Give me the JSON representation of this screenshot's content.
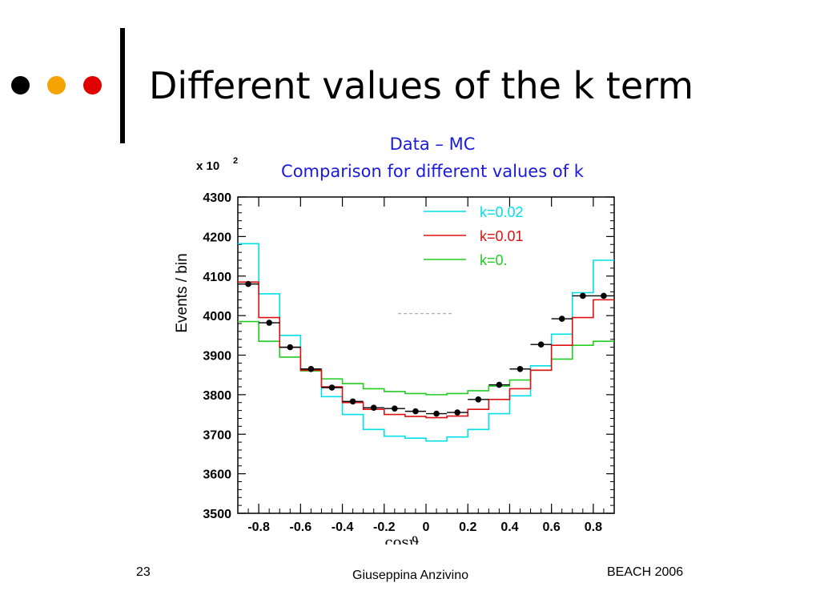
{
  "slide": {
    "title": "Different values of the k term",
    "subtitle_line1": "Data – MC",
    "subtitle_line2": "Comparison for different values of k",
    "bullet_colors": [
      "#000000",
      "#f5a300",
      "#e00000"
    ],
    "footer": {
      "page_number": "23",
      "author": "Giuseppina Anzivino",
      "event": "BEACH 2006"
    }
  },
  "chart_data": {
    "type": "line",
    "xlabel": "cosϑ",
    "ylabel": "Events / bin",
    "y_multiplier_label": "x 10",
    "y_multiplier_exp": "2",
    "xlim": [
      -0.9,
      0.9
    ],
    "ylim": [
      3500,
      4300
    ],
    "x_ticks": [
      -0.8,
      -0.6,
      -0.4,
      -0.2,
      0,
      0.2,
      0.4,
      0.6,
      0.8
    ],
    "x_tick_labels": [
      "-0.8",
      "-0.6",
      "-0.4",
      "-0.2",
      "0",
      "0.2",
      "0.4",
      "0.6",
      "0.8"
    ],
    "y_ticks": [
      3500,
      3600,
      3700,
      3800,
      3900,
      4000,
      4100,
      4200,
      4300
    ],
    "y_tick_labels": [
      "3500",
      "3600",
      "3700",
      "3800",
      "3900",
      "4000",
      "4100",
      "4200",
      "4300"
    ],
    "bin_edges": [
      -0.9,
      -0.8,
      -0.7,
      -0.6,
      -0.5,
      -0.4,
      -0.3,
      -0.2,
      -0.1,
      0,
      0.1,
      0.2,
      0.3,
      0.4,
      0.5,
      0.6,
      0.7,
      0.8,
      0.9
    ],
    "series": [
      {
        "name": "k=0.02",
        "color": "#00e0e8",
        "values": [
          4182,
          4055,
          3950,
          3865,
          3795,
          3750,
          3712,
          3695,
          3690,
          3683,
          3693,
          3712,
          3752,
          3797,
          3873,
          3953,
          4058,
          4140
        ]
      },
      {
        "name": "k=0.01",
        "color": "#e01010",
        "values": [
          4085,
          3995,
          3920,
          3862,
          3820,
          3780,
          3763,
          3750,
          3745,
          3742,
          3746,
          3763,
          3788,
          3815,
          3862,
          3925,
          3995,
          4040
        ]
      },
      {
        "name": "k=0.",
        "color": "#22cc22",
        "values": [
          3985,
          3935,
          3895,
          3860,
          3840,
          3828,
          3815,
          3808,
          3803,
          3800,
          3803,
          3810,
          3822,
          3837,
          3862,
          3890,
          3925,
          3935
        ]
      }
    ],
    "data_points": {
      "x": [
        -0.85,
        -0.75,
        -0.65,
        -0.55,
        -0.45,
        -0.35,
        -0.25,
        -0.15,
        -0.05,
        0.05,
        0.15,
        0.25,
        0.35,
        0.45,
        0.55,
        0.65,
        0.75,
        0.85
      ],
      "y": [
        4080,
        3982,
        3920,
        3865,
        3818,
        3783,
        3767,
        3765,
        3758,
        3752,
        3755,
        3788,
        3825,
        3865,
        3927,
        3992,
        4050,
        4050
      ]
    },
    "legend_position": "top-right",
    "grid": false
  }
}
